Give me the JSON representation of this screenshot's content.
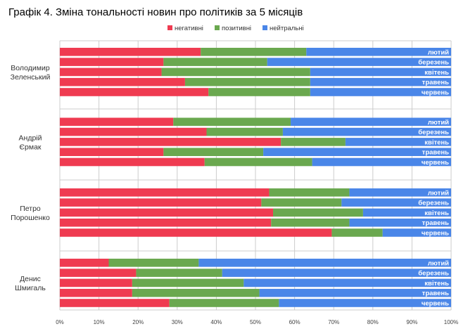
{
  "chart_data": {
    "type": "bar",
    "orientation": "horizontal",
    "stacked": "percent",
    "title": "Графік 4. Зміна тональності новин про політиків за 5 місяців",
    "xlim": [
      0,
      100
    ],
    "x_ticks": [
      "0%",
      "10%",
      "20%",
      "30%",
      "40%",
      "50%",
      "60%",
      "70%",
      "80%",
      "90%",
      "100%"
    ],
    "legend_position": "top",
    "series_names": [
      "негативні",
      "позитивні",
      "нейтральні"
    ],
    "colors": [
      "#ef3b51",
      "#6aa84f",
      "#4a86e8"
    ],
    "groups": [
      {
        "name": "Володимир Зеленський",
        "label_lines": [
          "Володимир",
          "Зеленський"
        ],
        "bars": [
          {
            "month": "лютий",
            "values": [
              36,
              27,
              37
            ]
          },
          {
            "month": "березень",
            "values": [
              26.5,
              26.5,
              47
            ]
          },
          {
            "month": "квітень",
            "values": [
              26,
              38,
              36
            ]
          },
          {
            "month": "травень",
            "values": [
              32,
              32,
              36
            ]
          },
          {
            "month": "червень",
            "values": [
              38,
              26,
              36
            ]
          }
        ]
      },
      {
        "name": "Андрій Єрмак",
        "label_lines": [
          "Андрій",
          "Єрмак"
        ],
        "bars": [
          {
            "month": "лютий",
            "values": [
              29,
              30,
              41
            ]
          },
          {
            "month": "березень",
            "values": [
              37.5,
              19.5,
              43
            ]
          },
          {
            "month": "квітень",
            "values": [
              56.5,
              16.5,
              27
            ]
          },
          {
            "month": "травень",
            "values": [
              26.5,
              25.5,
              48
            ]
          },
          {
            "month": "червень",
            "values": [
              37,
              27.5,
              35.5
            ]
          }
        ]
      },
      {
        "name": "Петро Порошенко",
        "label_lines": [
          "Петро",
          "Порошенко"
        ],
        "bars": [
          {
            "month": "лютий",
            "values": [
              53.5,
              20.5,
              26
            ]
          },
          {
            "month": "березень",
            "values": [
              51.5,
              20.5,
              28
            ]
          },
          {
            "month": "квітень",
            "values": [
              54.5,
              23,
              22.5
            ]
          },
          {
            "month": "травень",
            "values": [
              54,
              20,
              26
            ]
          },
          {
            "month": "червень",
            "values": [
              69.5,
              13,
              17.5
            ]
          }
        ]
      },
      {
        "name": "Денис Шмигаль",
        "label_lines": [
          "Денис",
          "Шмигаль"
        ],
        "bars": [
          {
            "month": "лютий",
            "values": [
              12.5,
              23,
              64.5
            ]
          },
          {
            "month": "березень",
            "values": [
              19.5,
              22,
              58.5
            ]
          },
          {
            "month": "квітень",
            "values": [
              18.5,
              28.5,
              53
            ]
          },
          {
            "month": "травень",
            "values": [
              18.5,
              32.5,
              49
            ]
          },
          {
            "month": "червень",
            "values": [
              28,
              28,
              44
            ]
          }
        ]
      }
    ]
  }
}
